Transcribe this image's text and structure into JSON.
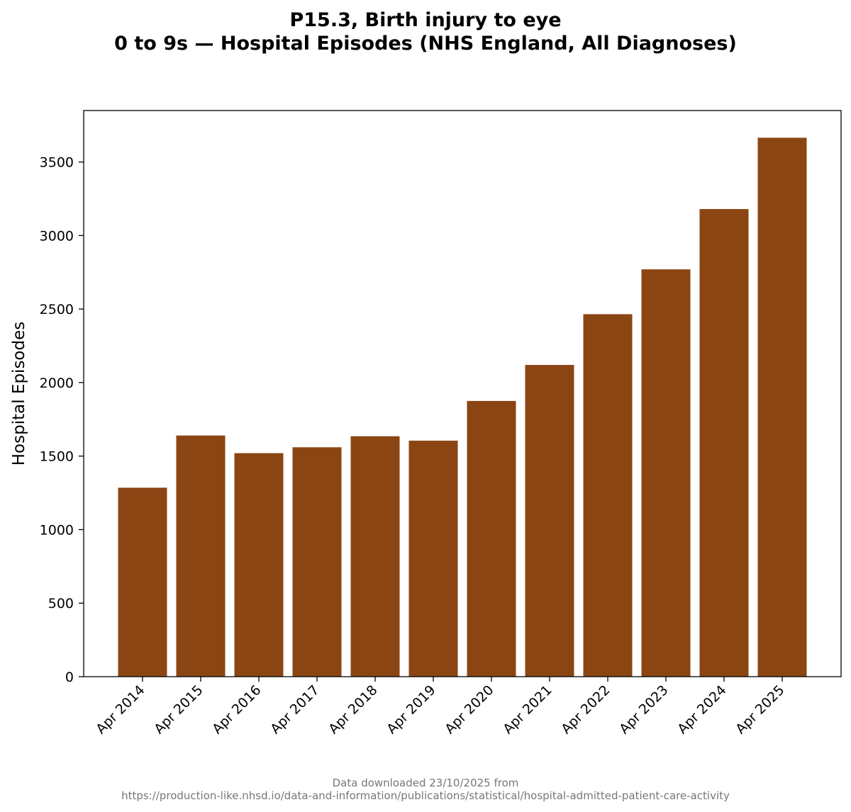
{
  "chart_data": {
    "type": "bar",
    "title_line1": "P15.3, Birth injury to eye",
    "title_line2": "0 to 9s — Hospital Episodes (NHS England, All Diagnoses)",
    "xlabel": "",
    "ylabel": "Hospital Episodes",
    "categories": [
      "Apr 2014",
      "Apr 2015",
      "Apr 2016",
      "Apr 2017",
      "Apr 2018",
      "Apr 2019",
      "Apr 2020",
      "Apr 2021",
      "Apr 2022",
      "Apr 2023",
      "Apr 2024",
      "Apr 2025"
    ],
    "values": [
      1285,
      1640,
      1520,
      1560,
      1635,
      1605,
      1875,
      2120,
      2465,
      2770,
      3180,
      3665
    ],
    "ylim": [
      0,
      3850
    ],
    "yticks": [
      0,
      500,
      1000,
      1500,
      2000,
      2500,
      3000,
      3500
    ],
    "bar_color": "#8B4513",
    "grid": false,
    "legend": "none"
  },
  "footer": {
    "line1": "Data downloaded 23/10/2025 from",
    "line2": "https://production-like.nhsd.io/data-and-information/publications/statistical/hospital-admitted-patient-care-activity"
  }
}
